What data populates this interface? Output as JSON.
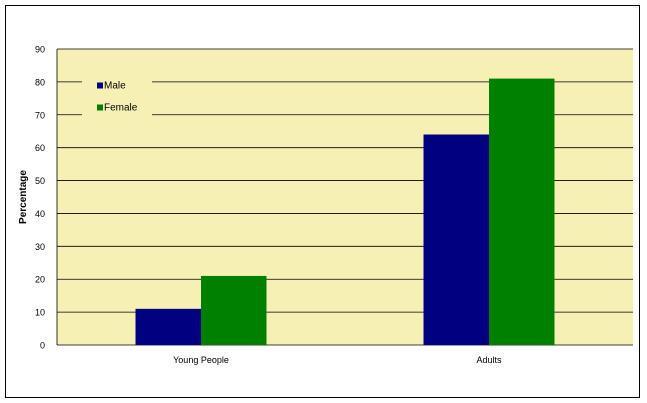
{
  "chart_data": {
    "type": "bar",
    "title": "",
    "xlabel": "",
    "ylabel": "Percentage",
    "ylim": [
      0,
      90
    ],
    "yticks": [
      0,
      10,
      20,
      30,
      40,
      50,
      60,
      70,
      80,
      90
    ],
    "grid": true,
    "legend_position": "top-left",
    "categories": [
      "Young People",
      "Adults"
    ],
    "series": [
      {
        "name": "Male",
        "values": [
          11,
          64
        ],
        "color": "#000080"
      },
      {
        "name": "Female",
        "values": [
          21,
          81
        ],
        "color": "#008000"
      }
    ],
    "plot_background": "#f7f0b5"
  }
}
